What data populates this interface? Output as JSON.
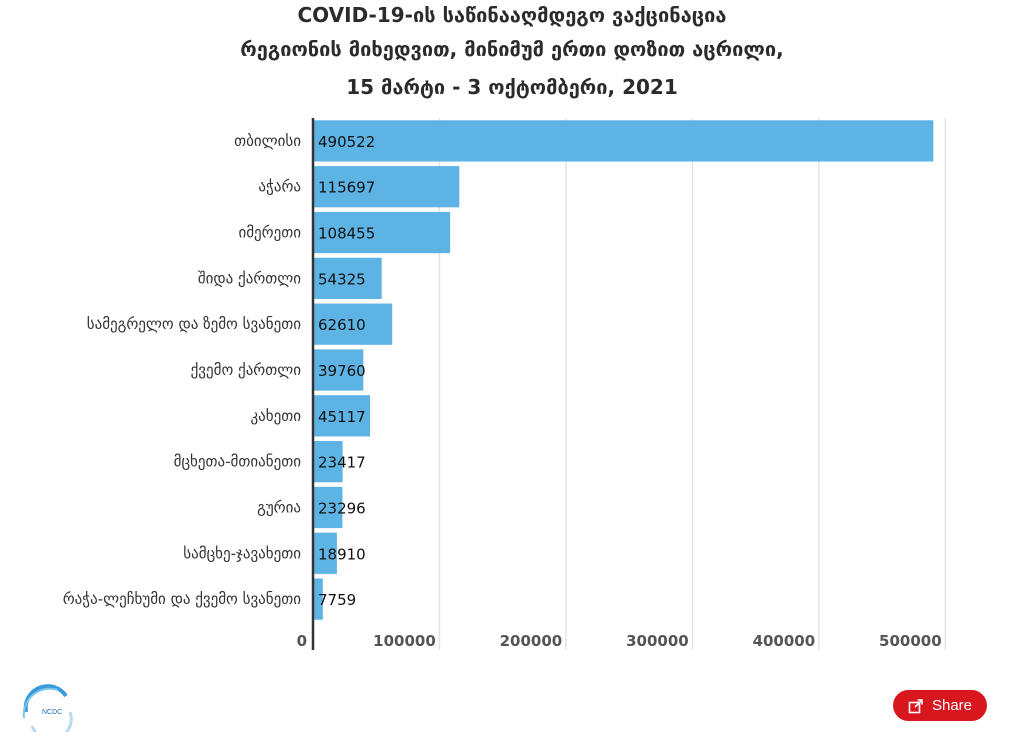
{
  "chart_data": {
    "type": "bar",
    "orientation": "horizontal",
    "title": [
      "COVID-19-ის საწინააღმდეგო ვაქცინაცია",
      "რეგიონის მიხედვით, მინიმუმ ერთი დოზით აცრილი,",
      "15 მარტი - 3 ოქტომბერი, 2021"
    ],
    "categories": [
      "თბილისი",
      "აჭარა",
      "იმერეთი",
      "შიდა ქართლი",
      "სამეგრელო და ზემო სვანეთი",
      "ქვემო ქართლი",
      "კახეთი",
      "მცხეთა-მთიანეთი",
      "გურია",
      "სამცხე-ჯავახეთი",
      "რაჭა-ლეჩხუმი და ქვემო სვანეთი"
    ],
    "values": [
      490522,
      115697,
      108455,
      54325,
      62610,
      39760,
      45117,
      23417,
      23296,
      18910,
      7759
    ],
    "xlim": [
      0,
      510000
    ],
    "xticks": [
      0,
      100000,
      200000,
      300000,
      400000,
      500000
    ],
    "grid": true,
    "bar_color": "#5db4e4"
  },
  "logo": {
    "text": "NCDC"
  },
  "share": {
    "label": "Share"
  }
}
